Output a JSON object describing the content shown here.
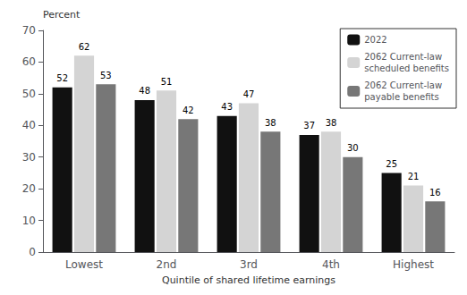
{
  "chart_data": {
    "type": "bar",
    "categories": [
      "Lowest",
      "2nd",
      "3rd",
      "4th",
      "Highest"
    ],
    "series": [
      {
        "name": "2022",
        "color": "#111111",
        "values": [
          52,
          48,
          43,
          37,
          25
        ]
      },
      {
        "name": "2062 Current-law\nscheduled benefits",
        "color": "#d4d4d4",
        "values": [
          62,
          51,
          47,
          38,
          21
        ]
      },
      {
        "name": "2062 Current-law\npayable benefits",
        "color": "#777777",
        "values": [
          53,
          42,
          38,
          30,
          16
        ]
      }
    ],
    "xlabel": "Quintile of shared lifetime earnings",
    "ylabel": "Percent",
    "ylim": [
      0,
      70
    ],
    "yticks": [
      0,
      10,
      20,
      30,
      40,
      50,
      60,
      70
    ],
    "grid": false,
    "legend": "upper right",
    "data_labels": true
  }
}
